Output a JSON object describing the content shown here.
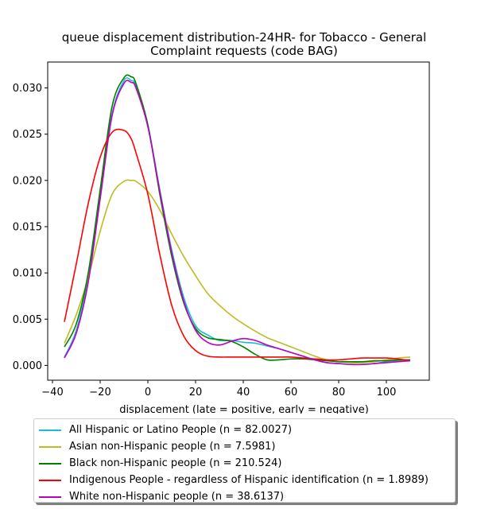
{
  "chart_data": {
    "type": "line",
    "title": "queue displacement distribution-24HR-  for Tobacco - General\nComplaint  requests (code BAG)",
    "xlabel": "displacement (late = positive, early = negative)",
    "ylabel": "",
    "xlim": [
      -42,
      118
    ],
    "ylim": [
      -0.0016,
      0.0328
    ],
    "xticks": [
      -40,
      -20,
      0,
      20,
      40,
      60,
      80,
      100
    ],
    "xtick_labels": [
      "−40",
      "−20",
      "0",
      "20",
      "40",
      "60",
      "80",
      "100"
    ],
    "yticks": [
      0.0,
      0.005,
      0.01,
      0.015,
      0.02,
      0.025,
      0.03
    ],
    "ytick_labels": [
      "0.000",
      "0.005",
      "0.010",
      "0.015",
      "0.020",
      "0.025",
      "0.030"
    ],
    "grid": false,
    "legend_position": "below",
    "x": [
      -35,
      -30,
      -25,
      -20,
      -15,
      -10,
      -7,
      -5,
      0,
      5,
      10,
      15,
      20,
      25,
      30,
      35,
      40,
      45,
      50,
      55,
      60,
      65,
      70,
      75,
      80,
      85,
      90,
      95,
      100,
      105,
      110
    ],
    "series": [
      {
        "name": "All Hispanic or Latino People (n = 82.0027)",
        "color": "#17becf",
        "values": [
          0.0009,
          0.0038,
          0.0095,
          0.0185,
          0.0272,
          0.0308,
          0.0308,
          0.0302,
          0.026,
          0.019,
          0.0125,
          0.0074,
          0.0043,
          0.0033,
          0.0027,
          0.0027,
          0.0025,
          0.0024,
          0.0021,
          0.0018,
          0.0014,
          0.001,
          0.0006,
          0.0003,
          0.0002,
          0.0001,
          0.0001,
          0.0002,
          0.0004,
          0.0005,
          0.0006
        ]
      },
      {
        "name": "Asian non-Hispanic people (n = 7.5981)",
        "color": "#bcbd22",
        "values": [
          0.0024,
          0.0055,
          0.0095,
          0.0145,
          0.0185,
          0.0199,
          0.02,
          0.0199,
          0.0188,
          0.0168,
          0.0142,
          0.0118,
          0.0097,
          0.0078,
          0.0065,
          0.0054,
          0.0045,
          0.0037,
          0.003,
          0.0025,
          0.002,
          0.0015,
          0.001,
          0.0006,
          0.0004,
          0.0003,
          0.0003,
          0.0004,
          0.0006,
          0.0008,
          0.0009
        ]
      },
      {
        "name": "Black non-Hispanic people (n = 210.524)",
        "color": "#008000",
        "values": [
          0.002,
          0.0045,
          0.01,
          0.019,
          0.028,
          0.0311,
          0.0312,
          0.0305,
          0.026,
          0.0185,
          0.0118,
          0.0068,
          0.004,
          0.003,
          0.0028,
          0.0026,
          0.002,
          0.0012,
          0.0006,
          0.0006,
          0.0007,
          0.0007,
          0.0006,
          0.0005,
          0.0004,
          0.0004,
          0.0004,
          0.0005,
          0.0005,
          0.0006,
          0.0006
        ]
      },
      {
        "name": "Indigenous People - regardless of Hispanic identification (n = 1.8989)",
        "color": "#ff0000",
        "values": [
          0.0047,
          0.011,
          0.0175,
          0.0225,
          0.0252,
          0.0254,
          0.0245,
          0.023,
          0.0185,
          0.012,
          0.0065,
          0.0032,
          0.0016,
          0.001,
          0.0009,
          0.0009,
          0.0009,
          0.0009,
          0.0009,
          0.0009,
          0.0009,
          0.0008,
          0.0007,
          0.0006,
          0.0006,
          0.0007,
          0.0008,
          0.0008,
          0.0008,
          0.0007,
          0.0005
        ]
      },
      {
        "name": "White non-Hispanic people (n = 38.6137)",
        "color": "#bf00bf",
        "values": [
          0.0008,
          0.0035,
          0.009,
          0.018,
          0.027,
          0.0305,
          0.0306,
          0.03,
          0.0258,
          0.0188,
          0.0122,
          0.007,
          0.0038,
          0.0025,
          0.0022,
          0.0026,
          0.0029,
          0.0027,
          0.0022,
          0.0018,
          0.0014,
          0.001,
          0.0006,
          0.0003,
          0.0002,
          0.0001,
          0.0001,
          0.0002,
          0.0003,
          0.0004,
          0.0005
        ]
      }
    ]
  }
}
